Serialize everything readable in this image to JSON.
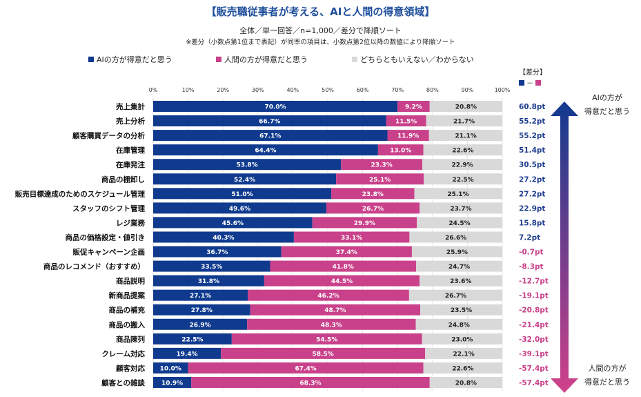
{
  "chart_data": {
    "type": "bar",
    "orientation": "horizontal",
    "stacked": true,
    "title": "【販売職従事者が考える、AIと人間の得意領域】",
    "subtitle": "全体／単一回答／n=1,000／差分で降順ソート",
    "note": "※差分（小数点第1位まで表記）が同率の項目は、小数点第2位以降の数値により降順ソート",
    "xlim": [
      0,
      100
    ],
    "x_ticks": [
      "0%",
      "10%",
      "20%",
      "30%",
      "40%",
      "50%",
      "60%",
      "70%",
      "80%",
      "90%",
      "100%"
    ],
    "grid": true,
    "legend_position": "top",
    "categories": [
      "売上集計",
      "売上分析",
      "顧客購買データの分析",
      "在庫管理",
      "在庫発注",
      "商品の棚卸し",
      "販売目標達成のためのスケジュール管理",
      "スタッフのシフト管理",
      "レジ業務",
      "商品の価格設定・値引き",
      "販促キャンペーン企画",
      "商品のレコメンド（おすすめ）",
      "商品説明",
      "新商品提案",
      "商品の補充",
      "商品の搬入",
      "商品陳列",
      "クレーム対応",
      "顧客対応",
      "顧客との雑談"
    ],
    "series": [
      {
        "name": "AIの方が得意だと思う",
        "color": "#0f3a8e",
        "values": [
          70.0,
          66.7,
          67.1,
          64.4,
          53.8,
          52.4,
          51.0,
          49.6,
          45.6,
          40.3,
          36.7,
          33.5,
          31.8,
          27.1,
          27.8,
          26.9,
          22.5,
          19.4,
          10.0,
          10.9
        ]
      },
      {
        "name": "人間の方が得意だと思う",
        "color": "#c9418a",
        "values": [
          9.2,
          11.5,
          11.9,
          13.0,
          23.3,
          25.1,
          23.8,
          26.7,
          29.9,
          33.1,
          37.4,
          41.8,
          44.5,
          46.2,
          48.7,
          48.3,
          54.5,
          58.5,
          67.4,
          68.3
        ]
      },
      {
        "name": "どちらともいえない／わからない",
        "color": "#d9d9d9",
        "values": [
          20.8,
          21.7,
          21.1,
          22.6,
          22.9,
          22.5,
          25.1,
          23.7,
          24.5,
          26.6,
          25.9,
          24.7,
          23.6,
          26.7,
          23.5,
          24.8,
          23.0,
          22.1,
          22.6,
          20.8
        ]
      }
    ],
    "diff": {
      "title": "【差分】",
      "key_sep": "－",
      "labels": [
        "60.8pt",
        "55.2pt",
        "55.2pt",
        "51.4pt",
        "30.5pt",
        "27.2pt",
        "27.2pt",
        "22.9pt",
        "15.8pt",
        "7.2pt",
        "-0.7pt",
        "-8.3pt",
        "-12.7pt",
        "-19.1pt",
        "-20.8pt",
        "-21.4pt",
        "-32.0pt",
        "-39.1pt",
        "-57.4pt",
        "-57.4pt"
      ],
      "positive_color": "#1f3f8f",
      "negative_color": "#c9418a"
    },
    "annotations": {
      "top": [
        "AIの方が",
        "得意だと思う"
      ],
      "bottom": [
        "人間の方が",
        "得意だと思う"
      ]
    }
  }
}
